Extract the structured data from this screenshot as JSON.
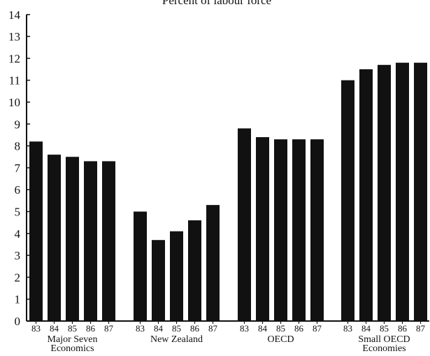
{
  "chart_data": {
    "type": "bar",
    "title": "Percent of labour force",
    "xlabel": "",
    "ylabel": "",
    "ylim": [
      0,
      14
    ],
    "yticks": [
      "0",
      "1",
      "2",
      "3",
      "4",
      "5",
      "6",
      "7",
      "8",
      "9",
      "10",
      "11",
      "12",
      "13",
      "14"
    ],
    "grid": false,
    "legend": "none",
    "bar_color": "#111111",
    "groups": [
      {
        "label_lines": [
          "Major Seven",
          "Economics"
        ],
        "years": [
          "83",
          "84",
          "85",
          "86",
          "87"
        ],
        "values": [
          8.2,
          7.6,
          7.5,
          7.3,
          7.3
        ]
      },
      {
        "label_lines": [
          "New Zealand"
        ],
        "years": [
          "83",
          "84",
          "85",
          "86",
          "87"
        ],
        "values": [
          5.0,
          3.7,
          4.1,
          4.6,
          5.3
        ]
      },
      {
        "label_lines": [
          "OECD"
        ],
        "years": [
          "83",
          "84",
          "85",
          "86",
          "87"
        ],
        "values": [
          8.8,
          8.4,
          8.3,
          8.3,
          8.3
        ]
      },
      {
        "label_lines": [
          "Small OECD",
          "Economies"
        ],
        "years": [
          "83",
          "84",
          "85",
          "86",
          "87"
        ],
        "values": [
          11.0,
          11.5,
          11.7,
          11.8,
          11.8
        ]
      }
    ]
  }
}
